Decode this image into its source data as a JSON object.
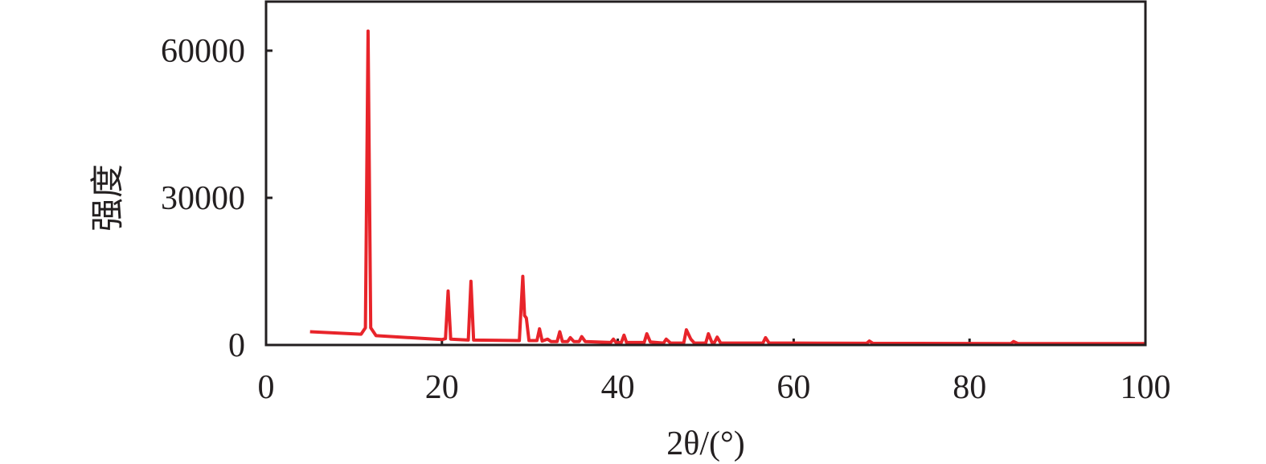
{
  "chart_data": {
    "type": "line",
    "title": "",
    "xlabel": "2θ/(°)",
    "ylabel": "强度",
    "xlim": [
      0,
      100
    ],
    "ylim": [
      0,
      70000
    ],
    "xticks": [
      0,
      20,
      40,
      60,
      80,
      100
    ],
    "yticks": [
      0,
      30000,
      60000
    ],
    "grid": false,
    "legend": "none",
    "color": "#e8242a",
    "series": [
      {
        "x": [
          5,
          10.8,
          11.3,
          11.6,
          11.9,
          12.5,
          20,
          20.4,
          20.7,
          21.0,
          23,
          23.3,
          23.6,
          28.8,
          29.2,
          29.4,
          29.6,
          29.9,
          30.8,
          31.1,
          31.4,
          32,
          32.4,
          33.1,
          33.4,
          33.7,
          34.3,
          34.6,
          35,
          35.6,
          35.9,
          36.3,
          39.2,
          39.5,
          39.8,
          40.4,
          40.7,
          41,
          43,
          43.3,
          43.7,
          45.2,
          45.5,
          46,
          47.5,
          47.8,
          48.3,
          48.7,
          50,
          50.3,
          50.7,
          51,
          51.3,
          51.7,
          56.5,
          56.8,
          57.2,
          60,
          68.3,
          68.6,
          69,
          84.7,
          85,
          85.5,
          100
        ],
        "y": [
          2700,
          2200,
          3500,
          64000,
          3500,
          1900,
          1100,
          1300,
          11000,
          1200,
          1000,
          13000,
          1000,
          900,
          14000,
          6000,
          5500,
          900,
          900,
          3300,
          800,
          1200,
          700,
          700,
          2700,
          700,
          700,
          1500,
          700,
          700,
          1700,
          700,
          500,
          1200,
          500,
          500,
          2000,
          500,
          500,
          2300,
          600,
          400,
          1200,
          400,
          400,
          3100,
          1200,
          400,
          400,
          2300,
          500,
          500,
          1600,
          400,
          400,
          1500,
          400,
          400,
          350,
          800,
          350,
          300,
          700,
          300,
          300
        ]
      }
    ]
  }
}
